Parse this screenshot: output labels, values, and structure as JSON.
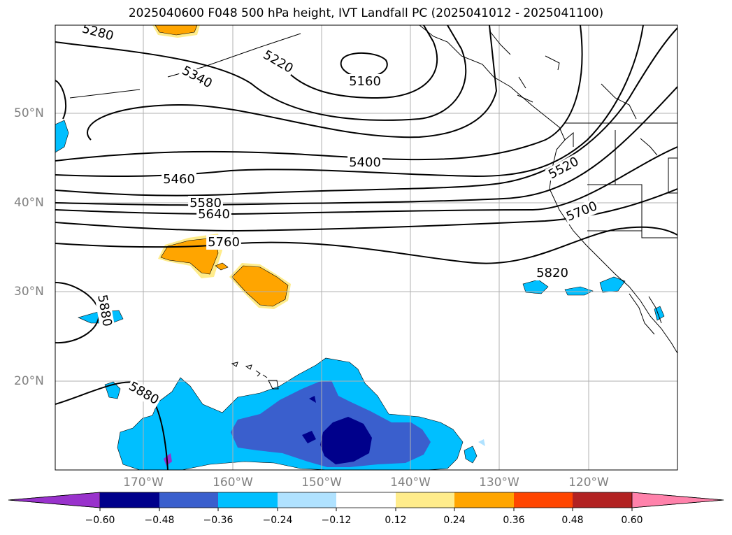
{
  "title": "2025040600 F048 500 hPa height, IVT Landfall PC (2025041012 - 2025041100)",
  "lat_labels": [
    "50°N",
    "40°N",
    "30°N",
    "20°N"
  ],
  "lon_labels": [
    "170°W",
    "160°W",
    "150°W",
    "140°W",
    "130°W",
    "120°W"
  ],
  "contour_labels": [
    "5280",
    "5220",
    "5160",
    "5340",
    "5400",
    "5460",
    "5520",
    "5580",
    "5640",
    "5700",
    "5760",
    "5820",
    "5880",
    "5880"
  ],
  "colorbar": {
    "tick_labels": [
      "−0.60",
      "−0.48",
      "−0.36",
      "−0.24",
      "−0.12",
      "0.12",
      "0.24",
      "0.36",
      "0.48",
      "0.60"
    ],
    "colors": [
      "#9932cc",
      "#00008b",
      "#3a5fcd",
      "#00bfff",
      "#b0e2ff",
      "#ffffff",
      "#ffec8b",
      "#ffa500",
      "#ff4500",
      "#b22222",
      "#ff82ab"
    ]
  },
  "fill_colors": {
    "light_blue": "#b0e2ff",
    "blue": "#00bfff",
    "royal": "#3a5fcd",
    "navy": "#00008b",
    "purple": "#9932cc",
    "yellow": "#ffec8b",
    "orange": "#ffa500"
  }
}
